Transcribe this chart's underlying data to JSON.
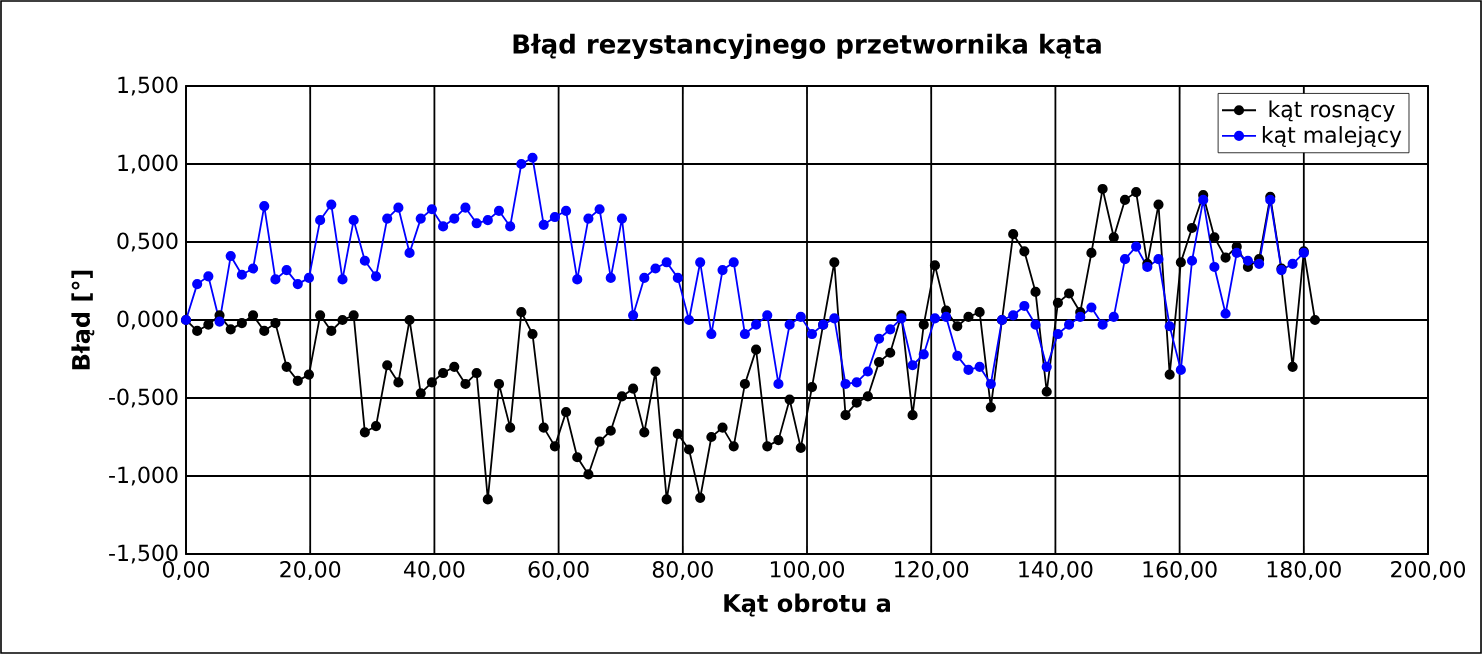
{
  "chart_data": {
    "type": "line",
    "title": "Błąd rezystancyjnego przetwornika kąta",
    "xlabel": "Kąt obrotu a",
    "ylabel": "Błąd [°]",
    "xlim": [
      0,
      200
    ],
    "ylim": [
      -1.5,
      1.5
    ],
    "xticks": [
      {
        "value": 0,
        "label": "0,00"
      },
      {
        "value": 20,
        "label": "20,00"
      },
      {
        "value": 40,
        "label": "40,00"
      },
      {
        "value": 60,
        "label": "60,00"
      },
      {
        "value": 80,
        "label": "80,00"
      },
      {
        "value": 100,
        "label": "100,00"
      },
      {
        "value": 120,
        "label": "120,00"
      },
      {
        "value": 140,
        "label": "140,00"
      },
      {
        "value": 160,
        "label": "160,00"
      },
      {
        "value": 180,
        "label": "180,00"
      },
      {
        "value": 200,
        "label": "200,00"
      }
    ],
    "yticks": [
      {
        "value": -1.5,
        "label": "-1,500"
      },
      {
        "value": -1,
        "label": "-1,000"
      },
      {
        "value": -0.5,
        "label": "-0,500"
      },
      {
        "value": 0,
        "label": "0,000"
      },
      {
        "value": 0.5,
        "label": "0,500"
      },
      {
        "value": 1,
        "label": "1,000"
      },
      {
        "value": 1.5,
        "label": "1,500"
      }
    ],
    "grid": true,
    "legend": "top right",
    "marker": "circle",
    "line_style": "solid",
    "series": [
      {
        "name": "kąt rosnący",
        "color": "#000000",
        "x": [
          0,
          1.8,
          3.6,
          5.4,
          7.2,
          9,
          10.8,
          12.6,
          14.4,
          16.2,
          18,
          19.8,
          21.6,
          23.4,
          25.2,
          27,
          28.8,
          30.6,
          32.4,
          34.2,
          36,
          37.8,
          39.6,
          41.4,
          43.2,
          45,
          46.8,
          48.6,
          50.4,
          52.2,
          54,
          55.8,
          57.6,
          59.4,
          61.2,
          63,
          64.8,
          66.6,
          68.4,
          70.2,
          72,
          73.8,
          75.6,
          77.4,
          79.2,
          81,
          82.8,
          84.6,
          86.4,
          88.2,
          90,
          91.8,
          93.6,
          95.4,
          97.2,
          99,
          100.8,
          102.6,
          104.4,
          106.2,
          108,
          109.8,
          111.6,
          113.4,
          115.2,
          117,
          118.8,
          120.6,
          122.4,
          124.2,
          126,
          127.8,
          129.6,
          131.4,
          133.2,
          135,
          136.8,
          138.6,
          140.4,
          142.2,
          144,
          145.8,
          147.6,
          149.4,
          151.2,
          153,
          154.8,
          156.6,
          158.4,
          160.2,
          162,
          163.8,
          165.6,
          167.4,
          169.2,
          171,
          172.8,
          174.6,
          176.4,
          178.2,
          180,
          181.8
        ],
        "values": [
          0,
          -0.07,
          -0.03,
          0.03,
          -0.06,
          -0.02,
          0.03,
          -0.07,
          -0.02,
          -0.3,
          -0.39,
          -0.35,
          0.03,
          -0.07,
          0,
          0.03,
          -0.72,
          -0.68,
          -0.29,
          -0.4,
          0,
          -0.47,
          -0.4,
          -0.34,
          -0.3,
          -0.41,
          -0.34,
          -1.15,
          -0.41,
          -0.69,
          0.05,
          -0.09,
          -0.69,
          -0.81,
          -0.59,
          -0.88,
          -0.99,
          -0.78,
          -0.71,
          -0.49,
          -0.44,
          -0.72,
          -0.33,
          -1.15,
          -0.73,
          -0.83,
          -1.14,
          -0.75,
          -0.69,
          -0.81,
          -0.41,
          -0.19,
          -0.81,
          -0.77,
          -0.51,
          -0.82,
          -0.43,
          -0.03,
          0.37,
          -0.61,
          -0.53,
          -0.49,
          -0.27,
          -0.21,
          0.03,
          -0.61,
          -0.03,
          0.35,
          0.06,
          -0.04,
          0.02,
          0.05,
          -0.56,
          0,
          0.55,
          0.44,
          0.18,
          -0.46,
          0.11,
          0.17,
          0.05,
          0.43,
          0.84,
          0.53,
          0.77,
          0.82,
          0.36,
          0.74,
          -0.35,
          0.37,
          0.59,
          0.8,
          0.53,
          0.4,
          0.47,
          0.34,
          0.39,
          0.79,
          0.33,
          -0.3,
          0.44,
          0
        ]
      },
      {
        "name": "kąt malejący",
        "color": "#0000ff",
        "x": [
          0,
          1.8,
          3.6,
          5.4,
          7.2,
          9,
          10.8,
          12.6,
          14.4,
          16.2,
          18,
          19.8,
          21.6,
          23.4,
          25.2,
          27,
          28.8,
          30.6,
          32.4,
          34.2,
          36,
          37.8,
          39.6,
          41.4,
          43.2,
          45,
          46.8,
          48.6,
          50.4,
          52.2,
          54,
          55.8,
          57.6,
          59.4,
          61.2,
          63,
          64.8,
          66.6,
          68.4,
          70.2,
          72,
          73.8,
          75.6,
          77.4,
          79.2,
          81,
          82.8,
          84.6,
          86.4,
          88.2,
          90,
          91.8,
          93.6,
          95.4,
          97.2,
          99,
          100.8,
          102.6,
          104.4,
          106.2,
          108,
          109.8,
          111.6,
          113.4,
          115.2,
          117,
          118.8,
          120.6,
          122.4,
          124.2,
          126,
          127.8,
          129.6,
          131.4,
          133.2,
          135,
          136.8,
          138.6,
          140.4,
          142.2,
          144,
          145.8,
          147.6,
          149.4,
          151.2,
          153,
          154.8,
          156.6,
          158.4,
          160.2,
          162,
          163.8,
          165.6,
          167.4,
          169.2,
          171,
          172.8,
          174.6,
          176.4,
          178.2,
          180
        ],
        "values": [
          0,
          0.23,
          0.28,
          -0.01,
          0.41,
          0.29,
          0.33,
          0.73,
          0.26,
          0.32,
          0.23,
          0.27,
          0.64,
          0.74,
          0.26,
          0.64,
          0.38,
          0.28,
          0.65,
          0.72,
          0.43,
          0.65,
          0.71,
          0.6,
          0.65,
          0.72,
          0.62,
          0.64,
          0.7,
          0.6,
          1.0,
          1.04,
          0.61,
          0.66,
          0.7,
          0.26,
          0.65,
          0.71,
          0.27,
          0.65,
          0.03,
          0.27,
          0.33,
          0.37,
          0.27,
          0,
          0.37,
          -0.09,
          0.32,
          0.37,
          -0.09,
          -0.03,
          0.03,
          -0.41,
          -0.03,
          0.02,
          -0.09,
          -0.03,
          0.01,
          -0.41,
          -0.4,
          -0.33,
          -0.12,
          -0.06,
          0.01,
          -0.29,
          -0.22,
          0.01,
          0.02,
          -0.23,
          -0.32,
          -0.3,
          -0.41,
          0,
          0.03,
          0.09,
          -0.03,
          -0.3,
          -0.09,
          -0.03,
          0.02,
          0.08,
          -0.03,
          0.02,
          0.39,
          0.47,
          0.34,
          0.39,
          -0.04,
          -0.32,
          0.38,
          0.77,
          0.34,
          0.04,
          0.43,
          0.38,
          0.36,
          0.77,
          0.32,
          0.36,
          0.43
        ]
      }
    ]
  }
}
